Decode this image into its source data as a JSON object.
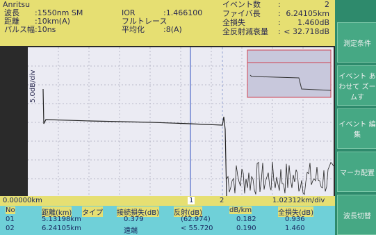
{
  "header": {
    "brand": "Anritsu",
    "rows": [
      [
        "波長",
        ":1550nm SM",
        "IOR",
        ":1.466100"
      ],
      [
        "距離",
        ":10km(A)",
        "フルトレース"
      ],
      [
        "パルス幅",
        ":10ns",
        "平均化",
        ":8(A)"
      ]
    ],
    "summary": [
      [
        "イベント数",
        ":",
        "2"
      ],
      [
        "ファイバ長",
        ":",
        "6.24105km"
      ],
      [
        "全損失",
        ":",
        "1.460dB"
      ],
      [
        "全反射減衰量",
        ":",
        "< 32.718dB"
      ]
    ]
  },
  "plot": {
    "y_scale": "5.0dB/div",
    "x_start": "0.00000km",
    "x_scale": "1.02312km/div",
    "markers": [
      "1",
      "2"
    ]
  },
  "menu": [
    "測定条件",
    "イベント あわせて ズームす",
    "イベント 編集",
    "マーカ配置",
    "波長切替"
  ],
  "table": {
    "header": [
      "No",
      "距離(km)",
      "タイプ",
      "接続損失(dB)",
      "反射(dB)",
      "dB/km",
      "全損失(dB)"
    ],
    "rows": [
      [
        "01",
        "5.13198km",
        "0.379",
        "(62.974)",
        "0.182",
        "0.936"
      ],
      [
        "02",
        "6.24105km",
        "遠端",
        "< 55.720",
        "0.190",
        "1.460"
      ]
    ]
  }
}
